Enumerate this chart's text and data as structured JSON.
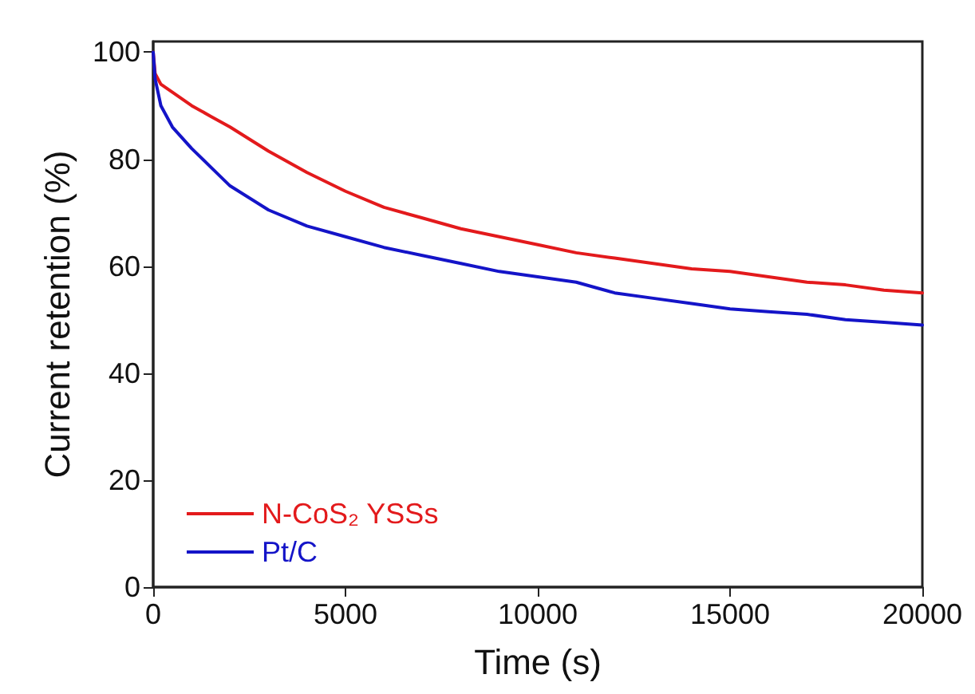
{
  "chart_data": {
    "type": "line",
    "xlabel": "Time (s)",
    "ylabel": "Current retention (%)",
    "xlim": [
      0,
      20000
    ],
    "ylim": [
      0,
      102
    ],
    "xticks": [
      0,
      5000,
      10000,
      15000,
      20000
    ],
    "yticks": [
      0,
      20,
      40,
      60,
      80,
      100
    ],
    "grid": false,
    "legend": "bottom left",
    "marker": "none",
    "line_style": "solid",
    "series": [
      {
        "name": "N-CoS₂ YSSs",
        "color": "#e31a1c",
        "x": [
          0,
          50,
          200,
          500,
          1000,
          1500,
          2000,
          3000,
          4000,
          5000,
          6000,
          7000,
          8000,
          9000,
          10000,
          11000,
          12000,
          13000,
          14000,
          15000,
          16000,
          17000,
          18000,
          19000,
          20000
        ],
        "values": [
          100,
          96,
          94,
          92.5,
          90,
          88,
          86,
          81.5,
          77.5,
          74,
          71,
          69,
          67,
          65.5,
          64,
          62.5,
          61.5,
          60.5,
          59.5,
          59,
          58,
          57,
          56.5,
          55.5,
          55
        ]
      },
      {
        "name": "Pt/C",
        "color": "#1414c8",
        "x": [
          0,
          50,
          200,
          500,
          1000,
          1500,
          2000,
          3000,
          4000,
          5000,
          6000,
          7000,
          8000,
          9000,
          10000,
          11000,
          11500,
          12000,
          13000,
          14000,
          15000,
          16000,
          17000,
          18000,
          19000,
          20000
        ],
        "values": [
          100,
          95,
          90,
          86,
          82,
          78.5,
          75,
          70.5,
          67.5,
          65.5,
          63.5,
          62,
          60.5,
          59,
          58,
          57,
          56,
          55,
          54,
          53,
          52,
          51.5,
          51,
          50,
          49.5,
          49
        ]
      }
    ]
  }
}
